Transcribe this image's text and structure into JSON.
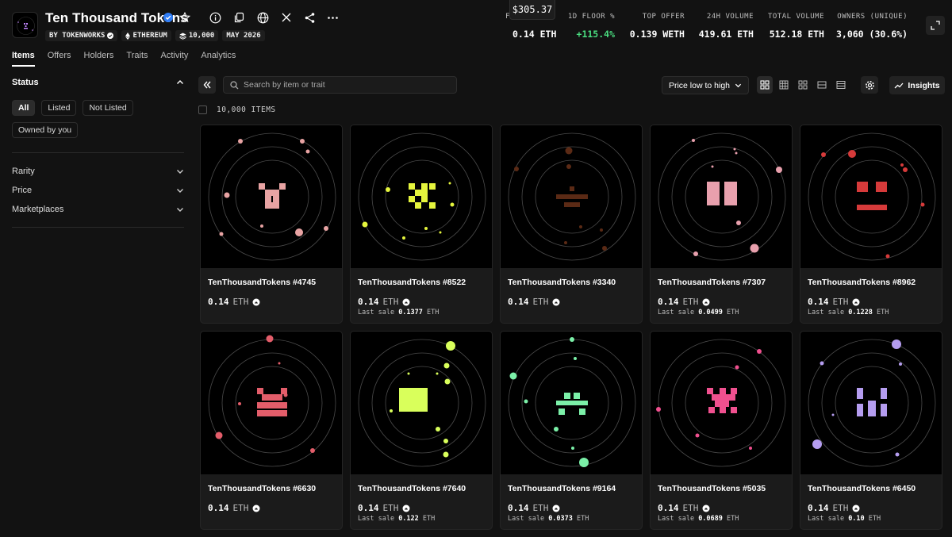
{
  "collection": {
    "title": "Ten Thousand Tokens",
    "badges": [
      {
        "label": "BY TOKENWORKS",
        "icon": "verified-icon"
      },
      {
        "label": "ETHEREUM",
        "icon": "ethereum-icon"
      },
      {
        "label": "10,000",
        "icon": "layers-icon"
      },
      {
        "label": "MAY 2026",
        "icon": ""
      }
    ]
  },
  "tooltip": "$305.37",
  "stats": [
    {
      "label": "F",
      "value": "0.14 ETH"
    },
    {
      "label": "1D FLOOR %",
      "value": "+115.4%"
    },
    {
      "label": "TOP OFFER",
      "value": "0.139 WETH"
    },
    {
      "label": "24H VOLUME",
      "value": "419.61 ETH"
    },
    {
      "label": "TOTAL VOLUME",
      "value": "512.18 ETH"
    },
    {
      "label": "OWNERS (UNIQUE)",
      "value": "3,060 (30.6%)"
    }
  ],
  "tabs": [
    "Items",
    "Offers",
    "Holders",
    "Traits",
    "Activity",
    "Analytics"
  ],
  "sidebar": {
    "status_title": "Status",
    "status_chips": [
      "All",
      "Listed",
      "Not Listed",
      "Owned by you"
    ],
    "filters": [
      "Rarity",
      "Price",
      "Marketplaces"
    ]
  },
  "toolbar": {
    "search_placeholder": "Search by item or trait",
    "sort_label": "Price low to high",
    "insights_label": "Insights"
  },
  "items_count": "10,000 ITEMS",
  "currency": "ETH",
  "last_sale_label": "Last sale",
  "items": [
    {
      "name": "TenThousandTokens #4745",
      "price": "0.14",
      "last_sale": "",
      "color": "#e8a3a3"
    },
    {
      "name": "TenThousandTokens #8522",
      "price": "0.14",
      "last_sale": "0.1377",
      "color": "#e5f53d"
    },
    {
      "name": "TenThousandTokens #3340",
      "price": "0.14",
      "last_sale": "",
      "color": "#5b2a15"
    },
    {
      "name": "TenThousandTokens #7307",
      "price": "0.14",
      "last_sale": "0.0499",
      "color": "#e8a0ad"
    },
    {
      "name": "TenThousandTokens #8962",
      "price": "0.14",
      "last_sale": "0.1228",
      "color": "#d63a3a"
    },
    {
      "name": "TenThousandTokens #6630",
      "price": "0.14",
      "last_sale": "",
      "color": "#e35d6a"
    },
    {
      "name": "TenThousandTokens #7640",
      "price": "0.14",
      "last_sale": "0.122",
      "color": "#d9ff5b"
    },
    {
      "name": "TenThousandTokens #9164",
      "price": "0.14",
      "last_sale": "0.0373",
      "color": "#7bf0a8"
    },
    {
      "name": "TenThousandTokens #5035",
      "price": "0.14",
      "last_sale": "0.0689",
      "color": "#f0508f"
    },
    {
      "name": "TenThousandTokens #6450",
      "price": "0.14",
      "last_sale": "0.10",
      "color": "#b59df0"
    }
  ]
}
